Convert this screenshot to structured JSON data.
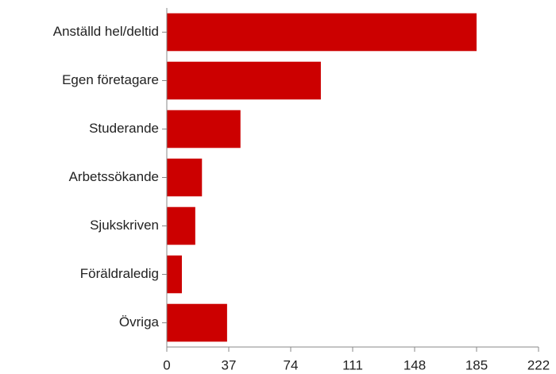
{
  "chart_data": {
    "type": "bar",
    "orientation": "horizontal",
    "categories": [
      "Anställd hel/deltid",
      "Egen företagare",
      "Studerande",
      "Arbetssökande",
      "Sjukskriven",
      "Föräldraledig",
      "Övriga"
    ],
    "values": [
      185,
      92,
      44,
      21,
      17,
      9,
      36
    ],
    "color": "#cc0000",
    "xlim": [
      0,
      222
    ],
    "xticks": [
      0,
      37,
      74,
      111,
      148,
      185,
      222
    ],
    "grid": false
  }
}
